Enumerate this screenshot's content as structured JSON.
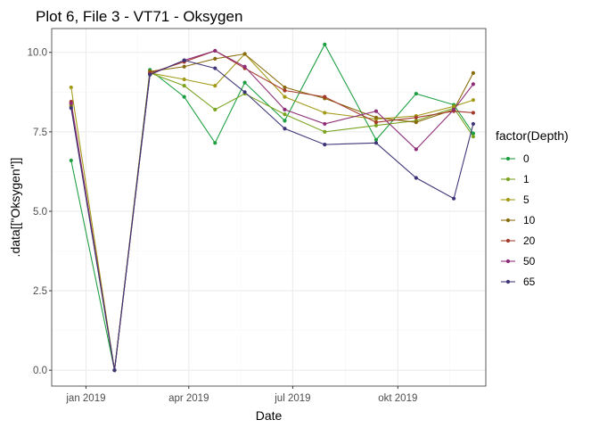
{
  "chart_data": {
    "type": "line",
    "title": "Plot 6, File 3 - VT71  -  Oksygen",
    "xlabel": "Date",
    "ylabel": ".data[[\"Oksygen\"]]",
    "x_type": "date",
    "xlim": [
      "2018-12-02",
      "2019-12-17"
    ],
    "ylim": [
      -0.5,
      10.75
    ],
    "x_ticks": [
      {
        "date": "2019-01-01",
        "label": "jan 2019"
      },
      {
        "date": "2019-04-01",
        "label": "apr 2019"
      },
      {
        "date": "2019-07-01",
        "label": "jul 2019"
      },
      {
        "date": "2019-10-01",
        "label": "okt 2019"
      }
    ],
    "y_ticks": [
      {
        "value": 0,
        "label": "0.0"
      },
      {
        "value": 2.5,
        "label": "2.5"
      },
      {
        "value": 5,
        "label": "5.0"
      },
      {
        "value": 7.5,
        "label": "7.5"
      },
      {
        "value": 10,
        "label": "10.0"
      }
    ],
    "grid": true,
    "legend": {
      "title": "factor(Depth)",
      "position": "right"
    },
    "x": [
      "2018-12-19",
      "2019-01-26",
      "2019-02-26",
      "2019-03-28",
      "2019-04-24",
      "2019-05-20",
      "2019-06-24",
      "2019-07-29",
      "2019-09-12",
      "2019-10-17",
      "2019-11-19",
      "2019-12-06"
    ],
    "series": [
      {
        "name": "0",
        "color": "#1b9e3f",
        "values": [
          6.6,
          0.0,
          9.45,
          8.6,
          7.15,
          9.05,
          7.85,
          10.25,
          7.25,
          8.7,
          8.35,
          7.45
        ]
      },
      {
        "name": "1",
        "color": "#7aa320",
        "values": [
          8.3,
          0.0,
          9.35,
          8.95,
          8.2,
          8.7,
          8.05,
          7.5,
          7.7,
          7.85,
          8.25,
          7.35
        ]
      },
      {
        "name": "5",
        "color": "#a39a16",
        "values": [
          8.9,
          0.0,
          9.35,
          9.15,
          8.95,
          9.95,
          8.6,
          8.1,
          7.9,
          8.0,
          8.3,
          8.5
        ]
      },
      {
        "name": "10",
        "color": "#8a6b0c",
        "values": [
          8.35,
          0.0,
          9.4,
          9.55,
          9.8,
          9.95,
          8.9,
          8.55,
          7.95,
          7.8,
          8.2,
          9.35
        ]
      },
      {
        "name": "20",
        "color": "#a3392a",
        "values": [
          8.45,
          0.0,
          9.35,
          9.7,
          10.05,
          9.5,
          8.8,
          8.6,
          7.8,
          7.95,
          8.15,
          8.1
        ]
      },
      {
        "name": "50",
        "color": "#8e2c78",
        "values": [
          8.4,
          0.0,
          9.3,
          9.75,
          10.05,
          9.55,
          8.2,
          7.75,
          8.15,
          6.95,
          8.2,
          9.0
        ]
      },
      {
        "name": "65",
        "color": "#3d3577",
        "values": [
          8.25,
          0.0,
          9.3,
          9.75,
          9.5,
          8.75,
          7.6,
          7.1,
          7.15,
          6.05,
          5.4,
          7.75
        ]
      }
    ]
  }
}
